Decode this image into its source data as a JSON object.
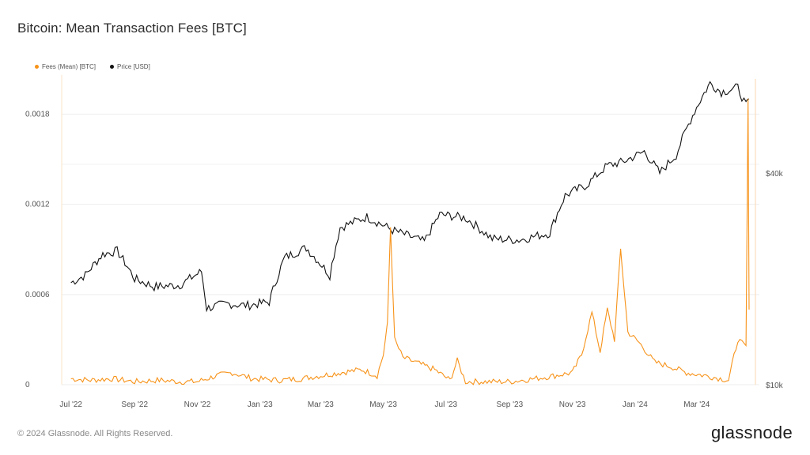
{
  "title": "Bitcoin: Mean Transaction Fees [BTC]",
  "footer": {
    "copyright": "© 2024 Glassnode. All Rights Reserved.",
    "brand": "glassnode"
  },
  "colors": {
    "fees": "#f7931a",
    "price": "#111111",
    "grid": "#eeeeee"
  },
  "chart_data": {
    "type": "line",
    "legend_placement": "top-left",
    "grid": true,
    "x_ticks": [
      "Jul '22",
      "Sep '22",
      "Nov '22",
      "Jan '23",
      "Mar '23",
      "May '23",
      "Jul '23",
      "Sep '23",
      "Nov '23",
      "Jan '24",
      "Mar '24"
    ],
    "y_left": {
      "ticks": [
        "0",
        "0.0006",
        "0.0012",
        "0.0018"
      ],
      "range": [
        0,
        0.00206
      ]
    },
    "y_right": {
      "ticks": [
        "$10k",
        "$40k"
      ],
      "scale": "log"
    },
    "series": [
      {
        "name": "Fees (Mean) [BTC]",
        "axis": "left",
        "points": [
          [
            "2022-07-01",
            4e-05
          ],
          [
            "2022-07-20",
            3e-05
          ],
          [
            "2022-08-10",
            4e-05
          ],
          [
            "2022-09-01",
            2e-05
          ],
          [
            "2022-09-25",
            3e-05
          ],
          [
            "2022-10-15",
            2e-05
          ],
          [
            "2022-11-01",
            2e-05
          ],
          [
            "2022-11-20",
            6e-05
          ],
          [
            "2022-12-05",
            8e-05
          ],
          [
            "2022-12-25",
            4e-05
          ],
          [
            "2023-01-20",
            3e-05
          ],
          [
            "2023-02-10",
            4e-05
          ],
          [
            "2023-03-01",
            6e-05
          ],
          [
            "2023-03-20",
            8e-05
          ],
          [
            "2023-04-10",
            0.0001
          ],
          [
            "2023-04-25",
            6e-05
          ],
          [
            "2023-05-01",
            0.0002
          ],
          [
            "2023-05-05",
            0.0004
          ],
          [
            "2023-05-08",
            0.00105
          ],
          [
            "2023-05-12",
            0.0003
          ],
          [
            "2023-05-20",
            0.00018
          ],
          [
            "2023-06-05",
            0.00014
          ],
          [
            "2023-06-20",
            0.0001
          ],
          [
            "2023-07-05",
            3e-05
          ],
          [
            "2023-07-12",
            0.00016
          ],
          [
            "2023-07-20",
            2e-05
          ],
          [
            "2023-08-10",
            2e-05
          ],
          [
            "2023-09-01",
            2e-05
          ],
          [
            "2023-09-25",
            4e-05
          ],
          [
            "2023-10-15",
            6e-05
          ],
          [
            "2023-11-01",
            8e-05
          ],
          [
            "2023-11-10",
            0.0002
          ],
          [
            "2023-11-20",
            0.00048
          ],
          [
            "2023-11-28",
            0.00022
          ],
          [
            "2023-12-05",
            0.0005
          ],
          [
            "2023-12-12",
            0.0003
          ],
          [
            "2023-12-18",
            0.0009
          ],
          [
            "2023-12-25",
            0.00035
          ],
          [
            "2024-01-05",
            0.00028
          ],
          [
            "2024-01-20",
            0.00015
          ],
          [
            "2024-02-05",
            0.00012
          ],
          [
            "2024-02-20",
            8e-05
          ],
          [
            "2024-03-10",
            6e-05
          ],
          [
            "2024-04-01",
            3e-05
          ],
          [
            "2024-04-10",
            0.0003
          ],
          [
            "2024-04-18",
            0.00025
          ],
          [
            "2024-04-20",
            0.0019
          ],
          [
            "2024-04-21",
            0.0005
          ]
        ]
      },
      {
        "name": "Price [USD]",
        "axis": "right",
        "points": [
          [
            "2022-07-01",
            19500
          ],
          [
            "2022-07-15",
            20500
          ],
          [
            "2022-08-01",
            23500
          ],
          [
            "2022-08-15",
            24000
          ],
          [
            "2022-09-01",
            20000
          ],
          [
            "2022-09-20",
            19000
          ],
          [
            "2022-10-15",
            19200
          ],
          [
            "2022-11-05",
            21000
          ],
          [
            "2022-11-10",
            16500
          ],
          [
            "2022-11-30",
            17000
          ],
          [
            "2022-12-20",
            16800
          ],
          [
            "2023-01-10",
            17200
          ],
          [
            "2023-01-25",
            23000
          ],
          [
            "2023-02-15",
            24500
          ],
          [
            "2023-03-10",
            20500
          ],
          [
            "2023-03-20",
            28000
          ],
          [
            "2023-04-15",
            30000
          ],
          [
            "2023-05-10",
            27500
          ],
          [
            "2023-06-10",
            25500
          ],
          [
            "2023-06-25",
            30500
          ],
          [
            "2023-07-20",
            29800
          ],
          [
            "2023-08-15",
            26000
          ],
          [
            "2023-09-10",
            25800
          ],
          [
            "2023-10-10",
            27000
          ],
          [
            "2023-10-25",
            34500
          ],
          [
            "2023-11-15",
            37000
          ],
          [
            "2023-12-05",
            42000
          ],
          [
            "2023-12-20",
            43000
          ],
          [
            "2024-01-10",
            46000
          ],
          [
            "2024-01-25",
            40000
          ],
          [
            "2024-02-10",
            45000
          ],
          [
            "2024-02-28",
            60000
          ],
          [
            "2024-03-14",
            72000
          ],
          [
            "2024-03-25",
            68000
          ],
          [
            "2024-04-10",
            70000
          ],
          [
            "2024-04-18",
            62000
          ],
          [
            "2024-04-21",
            65000
          ]
        ]
      }
    ]
  }
}
